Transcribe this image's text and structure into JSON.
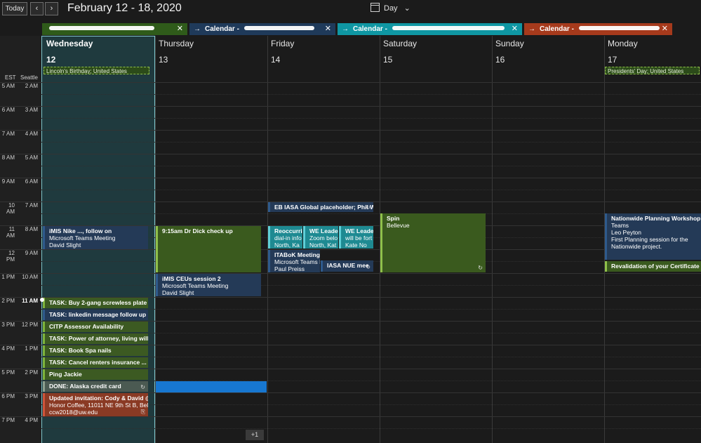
{
  "toolbar": {
    "today_label": "Today",
    "prev_icon": "chevron-left-icon",
    "next_icon": "chevron-right-icon",
    "range_title": "February 12 - 18, 2020",
    "view_label": "Day",
    "view_icon": "calendar-icon"
  },
  "calendar_tabs": [
    {
      "label": "",
      "color": "#2f5b1a"
    },
    {
      "label": "Calendar - ",
      "color": "#1f3a5a"
    },
    {
      "label": "Calendar - ",
      "color": "#0f97a3"
    },
    {
      "label": "Calendar - ",
      "color": "#a63a1c"
    }
  ],
  "timezones": {
    "primary": "EST",
    "secondary": "Seattle"
  },
  "hours": [
    {
      "est": "5 AM",
      "sea": "2 AM"
    },
    {
      "est": "6 AM",
      "sea": "3 AM"
    },
    {
      "est": "7 AM",
      "sea": "4 AM"
    },
    {
      "est": "8 AM",
      "sea": "5 AM"
    },
    {
      "est": "9 AM",
      "sea": "6 AM"
    },
    {
      "est": "10 AM",
      "sea": "7 AM"
    },
    {
      "est": "11 AM",
      "sea": "8 AM"
    },
    {
      "est": "12 PM",
      "sea": "9 AM"
    },
    {
      "est": "1 PM",
      "sea": "10 AM"
    },
    {
      "est": "2 PM",
      "sea": "11 AM"
    },
    {
      "est": "3 PM",
      "sea": "12 PM"
    },
    {
      "est": "4 PM",
      "sea": "1 PM"
    },
    {
      "est": "5 PM",
      "sea": "2 PM"
    },
    {
      "est": "6 PM",
      "sea": "3 PM"
    },
    {
      "est": "7 PM",
      "sea": "4 PM"
    }
  ],
  "days": [
    {
      "name": "Wednesday",
      "num": "12"
    },
    {
      "name": "Thursday",
      "num": "13"
    },
    {
      "name": "Friday",
      "num": "14"
    },
    {
      "name": "Saturday",
      "num": "15"
    },
    {
      "name": "Sunday",
      "num": "16"
    },
    {
      "name": "Monday",
      "num": "17"
    }
  ],
  "allday": {
    "wed": "Lincoln's Birthday; United States",
    "mon": "Presidents' Day; United States"
  },
  "events": {
    "wed_imis": {
      "title": "iMIS Nike ..., follow on",
      "l1": "Microsoft Teams Meeting",
      "l2": "David Slight"
    },
    "wed_task1": {
      "title": "TASK: Buy 2-gang screwless plate"
    },
    "wed_task2": {
      "title": "TASK: linkedin message follow up"
    },
    "wed_citp": {
      "title": "CITP Assessor Availability"
    },
    "wed_task3": {
      "title": "TASK: Power of attorney, living will, ..."
    },
    "wed_task4": {
      "title": "TASK: Book Spa nails"
    },
    "wed_task5": {
      "title": "TASK: Cancel renters insurance ..."
    },
    "wed_ping": {
      "title": "Ping Jackie"
    },
    "wed_done": {
      "title": "DONE: Alaska credit card"
    },
    "wed_updated": {
      "title": "Updated invitation: Cody & David @",
      "l1": "Honor Coffee, 11011 NE 9th St B, Bell",
      "l2": "ccw2018@uw.edu"
    },
    "thu_dr": {
      "title": "9:15am Dr Dick check up"
    },
    "thu_imis": {
      "title": "iMIS CEUs session 2",
      "l1": "Microsoft Teams Meeting",
      "l2": "David Slight"
    },
    "fri_eb": {
      "title": "EB IASA Global placeholder; Phil W"
    },
    "fri_reoc": {
      "title": "Reoccurrin",
      "l1": "dial-in info",
      "l2": "North, Ka"
    },
    "fri_we1": {
      "title": "WE Leader",
      "l1": "Zoom belo",
      "l2": "North, Kat"
    },
    "fri_we2": {
      "title": "WE Leader",
      "l1": "will be fort",
      "l2": "Kate No"
    },
    "fri_itabok": {
      "title": "ITABoK Meeting",
      "l1": "Microsoft Teams M",
      "l2": "Paul Preiss"
    },
    "fri_iasa": {
      "title": "IASA NUE mee"
    },
    "sat_spin": {
      "title": "Spin",
      "l1": "Bellevue"
    },
    "mon_nw": {
      "title": "Nationwide Planning Workshop",
      "l1": "Teams",
      "l2": "Leo Peyton",
      "l3": "First Planning session for the",
      "l4": "Nationwide project."
    },
    "mon_reval": {
      "title": "Revalidation of your Certificate of"
    }
  },
  "more_label": "+1"
}
